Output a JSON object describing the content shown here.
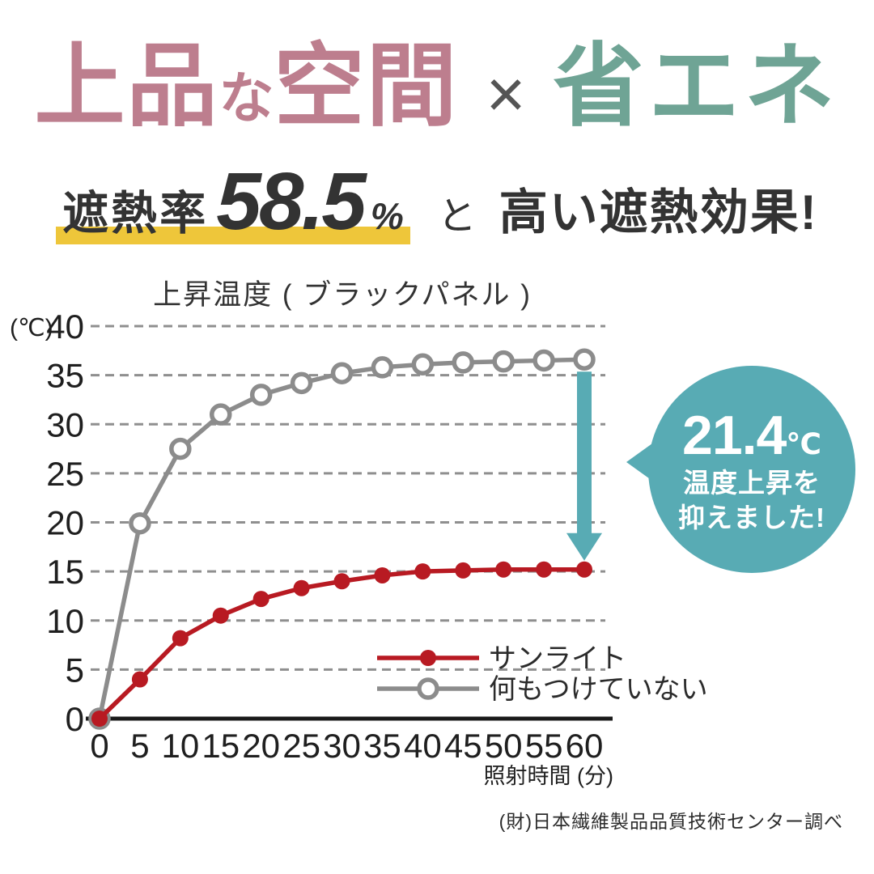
{
  "header": {
    "title_part1": "上品",
    "title_small": "な",
    "title_part2": "空間",
    "title_x": "×",
    "title_part3": "省エネ",
    "rose_color": "#bd7e8e",
    "teal_color": "#6fa495"
  },
  "subheader": {
    "label": "遮熱率",
    "value": "58.5",
    "unit": "%",
    "connector": "と",
    "rest": "高い遮熱効果!",
    "highlight_color": "#eec63a"
  },
  "chart_data": {
    "type": "line",
    "title": "上昇温度 ( ブラックパネル )",
    "xlabel": "照射時間 (分)",
    "ylabel": "(℃)",
    "x": [
      0,
      5,
      10,
      15,
      20,
      25,
      30,
      35,
      40,
      45,
      50,
      55,
      60
    ],
    "ylim": [
      0,
      40
    ],
    "ytick_step": 5,
    "grid": "horizontal-dashed",
    "legend_position": "inside-lower-right",
    "series": [
      {
        "name": "サンライト",
        "color": "#b81a22",
        "marker": "filled-circle",
        "values": [
          0,
          4.0,
          8.2,
          10.5,
          12.2,
          13.3,
          14.0,
          14.6,
          15.0,
          15.1,
          15.2,
          15.2,
          15.2
        ]
      },
      {
        "name": "何もつけていない",
        "color": "#8c8c8c",
        "marker": "open-circle",
        "values": [
          0,
          19.9,
          27.5,
          31.0,
          33.0,
          34.2,
          35.2,
          35.8,
          36.1,
          36.3,
          36.4,
          36.5,
          36.6
        ]
      }
    ],
    "annotation": {
      "arrow_at_x": 60,
      "arrow_color": "#58abb4",
      "delta_value": "21.4",
      "delta_unit": "℃",
      "note_line1": "温度上昇を",
      "note_line2": "抑えました!"
    }
  },
  "badge": {
    "value": "21.4",
    "unit": "℃",
    "line1": "温度上昇を",
    "line2": "抑えました!",
    "color": "#58abb4"
  },
  "footer": {
    "source": "(財)日本繊維製品品質技術センター調べ"
  }
}
